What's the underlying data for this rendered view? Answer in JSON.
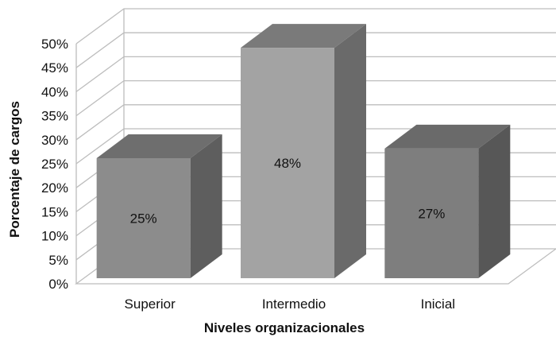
{
  "chart_data": {
    "type": "bar",
    "subtype": "3d-column",
    "categories": [
      "Superior",
      "Intermedio",
      "Inicial"
    ],
    "values": [
      25,
      48,
      27
    ],
    "data_labels": [
      "25%",
      "48%",
      "27%"
    ],
    "xlabel": "Niveles organizacionales",
    "ylabel": "Porcentaje de cargos",
    "ylim": [
      0,
      50
    ],
    "yticks": [
      "0%",
      "5%",
      "10%",
      "15%",
      "20%",
      "25%",
      "30%",
      "35%",
      "40%",
      "45%",
      "50%"
    ],
    "grid": true,
    "legend": "none",
    "colors": {
      "front": [
        "#8c8c8c",
        "#a3a3a3",
        "#7e7e7e"
      ],
      "top": [
        "#6e6e6e",
        "#7a7a7a",
        "#6a6a6a"
      ],
      "side": [
        "#5e5e5e",
        "#6a6a6a",
        "#575757"
      ],
      "grid": "#bdbdbd"
    }
  }
}
